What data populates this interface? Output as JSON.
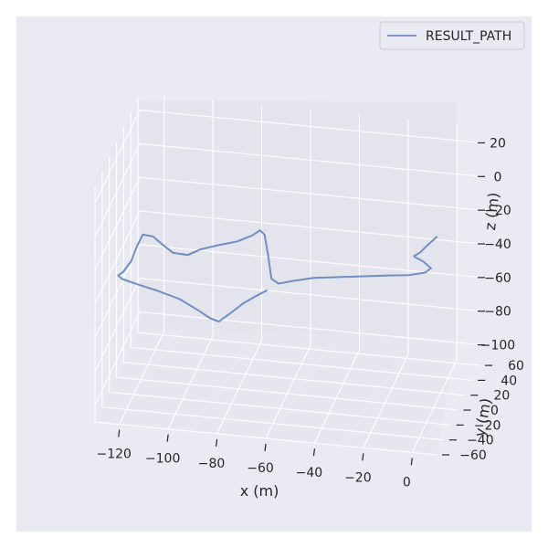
{
  "chart_data": {
    "type": "line",
    "projection": "3d",
    "xlabel": "x (m)",
    "ylabel": "y (m)",
    "zlabel": "z (m)",
    "xlim": [
      -130,
      10
    ],
    "ylim": [
      -60,
      65
    ],
    "zlim": [
      -110,
      30
    ],
    "x_ticks": [
      "−120",
      "−100",
      "−80",
      "−60",
      "−40",
      "−20",
      "0"
    ],
    "y_ticks": [
      "−60",
      "−40",
      "−20",
      "0",
      "20",
      "40",
      "60"
    ],
    "z_ticks": [
      "−100",
      "−80",
      "−60",
      "−40",
      "−20",
      "0",
      "20"
    ],
    "grid": true,
    "legend": {
      "position": "top-right",
      "entries": [
        "RESULT_PATH"
      ]
    },
    "series": [
      {
        "name": "RESULT_PATH",
        "color": "#6f8fc4",
        "points": [
          [
            2,
            -5,
            -6
          ],
          [
            -2,
            -4,
            -12
          ],
          [
            -5,
            -3,
            -17
          ],
          [
            -8,
            0,
            -21
          ],
          [
            -8,
            3,
            -23
          ],
          [
            -5,
            5,
            -26
          ],
          [
            -2,
            6,
            -30
          ],
          [
            -4,
            4,
            -32
          ],
          [
            -10,
            1,
            -33
          ],
          [
            -18,
            -2,
            -33
          ],
          [
            -28,
            -4,
            -34
          ],
          [
            -38,
            -6,
            -35
          ],
          [
            -48,
            -8,
            -36
          ],
          [
            -56,
            -10,
            -38
          ],
          [
            -62,
            -11,
            -40
          ],
          [
            -65,
            -10,
            -38
          ],
          [
            -67,
            -6,
            -26
          ],
          [
            -69,
            -2,
            -16
          ],
          [
            -71,
            -1,
            -14
          ],
          [
            -74,
            -2,
            -17
          ],
          [
            -80,
            -3,
            -21
          ],
          [
            -88,
            -4,
            -24
          ],
          [
            -95,
            -5,
            -27
          ],
          [
            -100,
            -5,
            -31
          ],
          [
            -106,
            -6,
            -30
          ],
          [
            -110,
            -6,
            -26
          ],
          [
            -114,
            -7,
            -21
          ],
          [
            -118,
            -8,
            -20
          ],
          [
            -120,
            -10,
            -26
          ],
          [
            -122,
            -13,
            -34
          ],
          [
            -125,
            -15,
            -40
          ],
          [
            -127,
            -16,
            -42
          ],
          [
            -125,
            -18,
            -43
          ],
          [
            -118,
            -21,
            -44
          ],
          [
            -110,
            -24,
            -45
          ],
          [
            -100,
            -28,
            -47
          ],
          [
            -92,
            -33,
            -50
          ],
          [
            -86,
            -38,
            -52
          ],
          [
            -82,
            -41,
            -52
          ],
          [
            -78,
            -35,
            -49
          ],
          [
            -74,
            -28,
            -46
          ],
          [
            -70,
            -22,
            -44
          ],
          [
            -66,
            -17,
            -42
          ]
        ]
      }
    ]
  }
}
